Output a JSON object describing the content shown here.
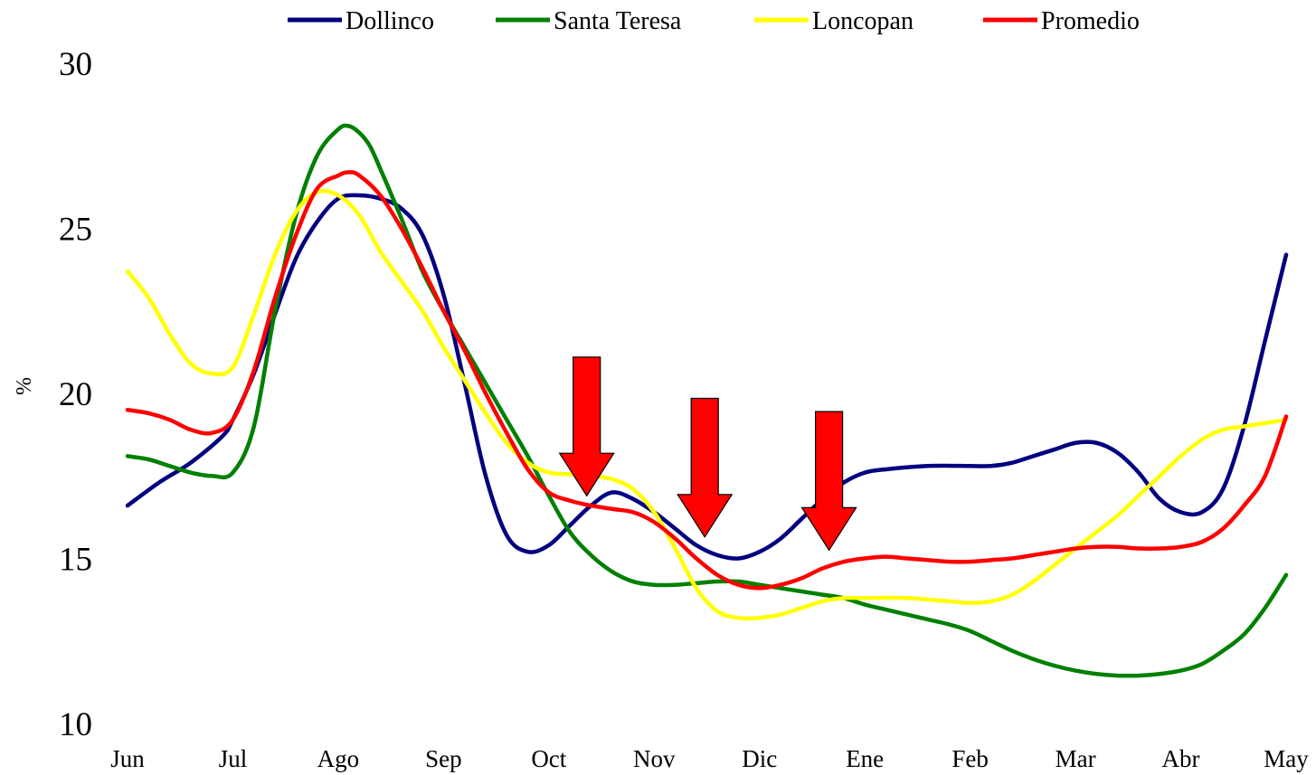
{
  "chart_data": {
    "type": "line",
    "title": "",
    "xlabel": "",
    "ylabel": "%",
    "ylim": [
      10,
      30
    ],
    "yticks": [
      10,
      15,
      20,
      25,
      30
    ],
    "categories": [
      "Jun",
      "Jul",
      "Ago",
      "Sep",
      "Oct",
      "Nov",
      "Dic",
      "Ene",
      "Feb",
      "Mar",
      "Abr",
      "May"
    ],
    "grid": false,
    "legend": "top",
    "series": [
      {
        "name": "Dollinco",
        "color": "#000080",
        "x": [
          0,
          0.3,
          0.6,
          0.9,
          1.0,
          1.2,
          1.4,
          1.6,
          1.8,
          2.0,
          2.2,
          2.4,
          2.6,
          2.8,
          3.0,
          3.2,
          3.4,
          3.6,
          3.8,
          4.0,
          4.2,
          4.4,
          4.6,
          4.8,
          5.0,
          5.2,
          5.4,
          5.6,
          5.8,
          6.0,
          6.2,
          6.4,
          6.6,
          6.8,
          7.0,
          7.2,
          7.6,
          8.0,
          8.2,
          8.4,
          8.6,
          8.8,
          9.0,
          9.2,
          9.4,
          9.6,
          9.8,
          10.0,
          10.2,
          10.4,
          10.6,
          10.8,
          11.0
        ],
        "values": [
          16.6,
          17.3,
          17.9,
          18.7,
          19.2,
          20.6,
          22.4,
          24.1,
          25.2,
          25.9,
          26.0,
          25.9,
          25.6,
          24.8,
          23.0,
          20.3,
          17.5,
          15.7,
          15.2,
          15.4,
          16.0,
          16.6,
          17.0,
          16.8,
          16.4,
          15.9,
          15.4,
          15.1,
          15.0,
          15.2,
          15.6,
          16.2,
          16.8,
          17.3,
          17.6,
          17.7,
          17.8,
          17.8,
          17.8,
          17.9,
          18.1,
          18.3,
          18.5,
          18.5,
          18.2,
          17.6,
          16.8,
          16.4,
          16.4,
          17.1,
          19.0,
          21.6,
          24.2
        ]
      },
      {
        "name": "Santa Teresa",
        "color": "#008000",
        "x": [
          0,
          0.2,
          0.4,
          0.6,
          0.8,
          1.0,
          1.2,
          1.4,
          1.6,
          1.8,
          2.0,
          2.1,
          2.2,
          2.3,
          2.4,
          2.6,
          2.8,
          3.0,
          3.2,
          3.4,
          3.6,
          3.8,
          4.0,
          4.2,
          4.4,
          4.6,
          4.8,
          5.0,
          5.2,
          5.4,
          5.6,
          5.8,
          6.0,
          6.2,
          6.4,
          6.6,
          6.8,
          7.0,
          7.2,
          7.4,
          7.6,
          7.8,
          8.0,
          8.2,
          8.4,
          8.6,
          8.8,
          9.0,
          9.2,
          9.4,
          9.6,
          9.8,
          10.0,
          10.2,
          10.4,
          10.6,
          10.8,
          11.0
        ],
        "values": [
          18.1,
          18.0,
          17.8,
          17.6,
          17.5,
          17.6,
          19.0,
          22.5,
          25.4,
          27.2,
          28.0,
          28.1,
          27.9,
          27.5,
          26.8,
          25.3,
          23.7,
          22.5,
          21.4,
          20.3,
          19.2,
          18.1,
          16.9,
          15.8,
          15.1,
          14.6,
          14.3,
          14.2,
          14.2,
          14.25,
          14.3,
          14.3,
          14.2,
          14.1,
          14.0,
          13.9,
          13.8,
          13.6,
          13.45,
          13.3,
          13.15,
          13.0,
          12.8,
          12.5,
          12.2,
          11.95,
          11.75,
          11.6,
          11.5,
          11.45,
          11.45,
          11.5,
          11.6,
          11.8,
          12.2,
          12.7,
          13.5,
          14.5
        ]
      },
      {
        "name": "Loncopan",
        "color": "#FFFF00",
        "x": [
          0,
          0.2,
          0.4,
          0.6,
          0.8,
          1.0,
          1.2,
          1.4,
          1.6,
          1.8,
          2.0,
          2.2,
          2.4,
          2.6,
          2.8,
          3.0,
          3.2,
          3.4,
          3.6,
          3.8,
          4.0,
          4.2,
          4.4,
          4.6,
          4.8,
          5.0,
          5.2,
          5.4,
          5.6,
          5.8,
          6.0,
          6.2,
          6.4,
          6.6,
          6.8,
          7.0,
          7.4,
          7.8,
          8.0,
          8.2,
          8.4,
          8.6,
          8.8,
          9.0,
          9.2,
          9.4,
          9.6,
          9.8,
          10.0,
          10.2,
          10.4,
          10.6,
          10.8,
          11.0
        ],
        "values": [
          23.7,
          22.9,
          21.8,
          20.9,
          20.6,
          20.8,
          22.4,
          24.2,
          25.5,
          26.1,
          26.0,
          25.4,
          24.3,
          23.4,
          22.5,
          21.4,
          20.4,
          19.4,
          18.5,
          17.9,
          17.6,
          17.55,
          17.5,
          17.4,
          17.1,
          16.4,
          15.3,
          14.1,
          13.4,
          13.2,
          13.2,
          13.3,
          13.5,
          13.7,
          13.8,
          13.8,
          13.8,
          13.7,
          13.65,
          13.7,
          13.9,
          14.3,
          14.8,
          15.3,
          15.8,
          16.3,
          16.9,
          17.5,
          18.1,
          18.6,
          18.9,
          19.0,
          19.1,
          19.2
        ]
      },
      {
        "name": "Promedio",
        "color": "#FF0000",
        "x": [
          0,
          0.2,
          0.4,
          0.6,
          0.8,
          1.0,
          1.2,
          1.4,
          1.6,
          1.8,
          2.0,
          2.1,
          2.2,
          2.4,
          2.6,
          2.8,
          3.0,
          3.2,
          3.4,
          3.6,
          3.8,
          4.0,
          4.2,
          4.4,
          4.6,
          4.8,
          5.0,
          5.2,
          5.4,
          5.6,
          5.8,
          6.0,
          6.2,
          6.4,
          6.6,
          6.8,
          7.0,
          7.2,
          7.4,
          7.6,
          7.8,
          8.0,
          8.2,
          8.4,
          8.6,
          8.8,
          9.0,
          9.2,
          9.4,
          9.6,
          9.8,
          10.0,
          10.2,
          10.4,
          10.6,
          10.8,
          11.0
        ],
        "values": [
          19.5,
          19.4,
          19.2,
          18.9,
          18.8,
          19.2,
          20.7,
          22.9,
          24.8,
          26.2,
          26.6,
          26.7,
          26.6,
          26.0,
          25.0,
          23.8,
          22.5,
          21.3,
          20.0,
          18.8,
          17.7,
          17.0,
          16.75,
          16.6,
          16.5,
          16.4,
          16.1,
          15.6,
          15.0,
          14.5,
          14.2,
          14.1,
          14.2,
          14.4,
          14.7,
          14.9,
          15.0,
          15.05,
          15.0,
          14.95,
          14.9,
          14.9,
          14.95,
          15.0,
          15.1,
          15.2,
          15.3,
          15.35,
          15.35,
          15.3,
          15.3,
          15.35,
          15.5,
          15.9,
          16.6,
          17.5,
          19.3
        ]
      }
    ],
    "annotations": [
      {
        "type": "down-arrow",
        "color": "#FF0000",
        "x": 4.36,
        "y_top": 21.1,
        "y_tip": 16.9
      },
      {
        "type": "down-arrow",
        "color": "#FF0000",
        "x": 5.48,
        "y_top": 19.85,
        "y_tip": 15.65
      },
      {
        "type": "down-arrow",
        "color": "#FF0000",
        "x": 6.66,
        "y_top": 19.45,
        "y_tip": 15.25
      }
    ]
  }
}
